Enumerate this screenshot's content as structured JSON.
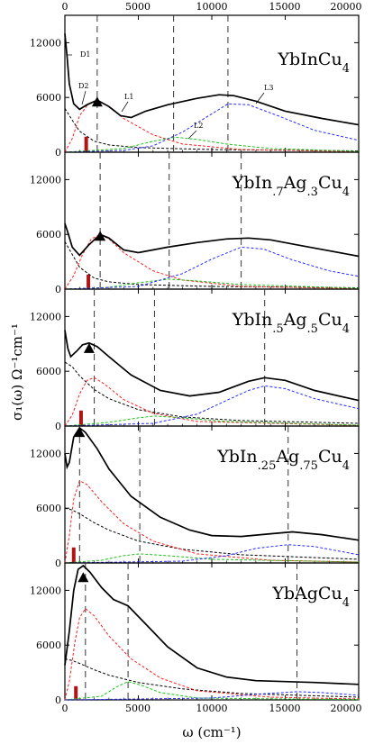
{
  "figure": {
    "top_ticks": [
      "0",
      "5000",
      "10000",
      "15000",
      "20000"
    ],
    "bottom_ticks": [
      "0",
      "5000",
      "10000",
      "15000",
      "20000"
    ],
    "xlabel": "ω (cm⁻¹)",
    "ylabel": "σ₁(ω) Ω⁻¹cm⁻¹"
  },
  "colors": {
    "total": "#000000",
    "drude": "#000000",
    "lorentz1": "#ff2020",
    "lorentz2": "#19c219",
    "lorentz3": "#2a2aff",
    "gap_bar": "#b01515",
    "dashed_vline": "#333333"
  },
  "chart_data": [
    {
      "type": "line",
      "title": "YbInCu4",
      "title_parts": [
        "YbInCu",
        "4"
      ],
      "xlim": [
        0,
        20000
      ],
      "ylim": [
        0,
        15000
      ],
      "yticks": [
        "12000",
        "6000",
        "0"
      ],
      "labels": [
        "D1",
        "D2",
        "L1",
        "L2",
        "L3"
      ],
      "vlines": [
        2200,
        7400,
        11100
      ],
      "bar": {
        "x": 1450,
        "height": 1700
      },
      "peak_marker": {
        "x": 2200,
        "y": 5500
      },
      "drude": [
        [
          0,
          4800
        ],
        [
          500,
          3500
        ],
        [
          1000,
          2300
        ],
        [
          2000,
          1200
        ],
        [
          3000,
          800
        ],
        [
          5000,
          500
        ],
        [
          10000,
          300
        ],
        [
          20000,
          150
        ]
      ],
      "lorentz1": [
        [
          0,
          0
        ],
        [
          500,
          1500
        ],
        [
          1000,
          4000
        ],
        [
          1600,
          5300
        ],
        [
          2200,
          5600
        ],
        [
          2800,
          5200
        ],
        [
          4000,
          3700
        ],
        [
          6000,
          1900
        ],
        [
          8000,
          900
        ],
        [
          12000,
          300
        ],
        [
          20000,
          60
        ]
      ],
      "lorentz2": [
        [
          0,
          0
        ],
        [
          4000,
          400
        ],
        [
          6000,
          1200
        ],
        [
          7500,
          1650
        ],
        [
          9000,
          1400
        ],
        [
          11000,
          900
        ],
        [
          14000,
          400
        ],
        [
          20000,
          100
        ]
      ],
      "lorentz3": [
        [
          0,
          0
        ],
        [
          4000,
          200
        ],
        [
          6000,
          700
        ],
        [
          8000,
          2200
        ],
        [
          10000,
          4200
        ],
        [
          11100,
          5300
        ],
        [
          12500,
          5200
        ],
        [
          14500,
          4000
        ],
        [
          17000,
          2400
        ],
        [
          20000,
          1300
        ]
      ],
      "total": [
        [
          0,
          13000
        ],
        [
          150,
          10500
        ],
        [
          300,
          7500
        ],
        [
          600,
          5300
        ],
        [
          1000,
          4700
        ],
        [
          1500,
          5200
        ],
        [
          2200,
          5700
        ],
        [
          3000,
          5000
        ],
        [
          3800,
          4000
        ],
        [
          4500,
          3800
        ],
        [
          5500,
          4500
        ],
        [
          7000,
          5200
        ],
        [
          9000,
          5900
        ],
        [
          10500,
          6300
        ],
        [
          11500,
          6200
        ],
        [
          13000,
          5600
        ],
        [
          15000,
          4500
        ],
        [
          17500,
          3700
        ],
        [
          20000,
          3000
        ]
      ]
    },
    {
      "type": "line",
      "title": "YbIn.7Ag.3Cu4",
      "title_parts": [
        "YbIn",
        ".7",
        "Ag",
        ".3",
        "Cu",
        "4"
      ],
      "xlim": [
        0,
        20000
      ],
      "ylim": [
        0,
        15000
      ],
      "yticks": [
        "12000",
        "6000",
        "0"
      ],
      "labels": [],
      "vlines": [
        2400,
        7100,
        12000
      ],
      "bar": {
        "x": 1600,
        "height": 1600
      },
      "peak_marker": {
        "x": 2400,
        "y": 5800
      },
      "drude": [
        [
          0,
          5200
        ],
        [
          500,
          3800
        ],
        [
          1000,
          2400
        ],
        [
          2000,
          1200
        ],
        [
          3000,
          800
        ],
        [
          5000,
          500
        ],
        [
          10000,
          300
        ],
        [
          20000,
          150
        ]
      ],
      "lorentz1": [
        [
          0,
          0
        ],
        [
          600,
          1500
        ],
        [
          1200,
          3800
        ],
        [
          1800,
          5500
        ],
        [
          2400,
          6000
        ],
        [
          3000,
          5500
        ],
        [
          4000,
          4000
        ],
        [
          6000,
          2000
        ],
        [
          8000,
          1000
        ],
        [
          12000,
          300
        ],
        [
          20000,
          60
        ]
      ],
      "lorentz2": [
        [
          0,
          0
        ],
        [
          3000,
          200
        ],
        [
          5000,
          700
        ],
        [
          7100,
          1100
        ],
        [
          9000,
          900
        ],
        [
          12000,
          500
        ],
        [
          20000,
          100
        ]
      ],
      "lorentz3": [
        [
          0,
          0
        ],
        [
          5000,
          300
        ],
        [
          8000,
          1700
        ],
        [
          10000,
          3300
        ],
        [
          12000,
          4600
        ],
        [
          13500,
          4400
        ],
        [
          15500,
          3200
        ],
        [
          18000,
          2000
        ],
        [
          20000,
          1400
        ]
      ],
      "total": [
        [
          0,
          7200
        ],
        [
          200,
          6200
        ],
        [
          500,
          4600
        ],
        [
          1000,
          3700
        ],
        [
          1600,
          4800
        ],
        [
          2400,
          6000
        ],
        [
          3000,
          5600
        ],
        [
          4000,
          4300
        ],
        [
          5000,
          4000
        ],
        [
          7000,
          4600
        ],
        [
          9000,
          5100
        ],
        [
          11000,
          5500
        ],
        [
          12500,
          5600
        ],
        [
          14000,
          5400
        ],
        [
          16000,
          4800
        ],
        [
          18000,
          4200
        ],
        [
          20000,
          3600
        ]
      ]
    },
    {
      "type": "line",
      "title": "YbIn.5Ag.5Cu4",
      "title_parts": [
        "YbIn",
        ".5",
        "Ag",
        ".5",
        "Cu",
        "4"
      ],
      "xlim": [
        0,
        20000
      ],
      "ylim": [
        0,
        15000
      ],
      "yticks": [
        "12000",
        "6000",
        "0"
      ],
      "labels": [],
      "vlines": [
        2000,
        6100,
        13600
      ],
      "bar": {
        "x": 1100,
        "height": 1700
      },
      "peak_marker": {
        "x": 1650,
        "y": 8500
      },
      "drude": [
        [
          0,
          7000
        ],
        [
          500,
          6500
        ],
        [
          1000,
          5500
        ],
        [
          2000,
          4000
        ],
        [
          3000,
          3000
        ],
        [
          5000,
          1800
        ],
        [
          8000,
          1000
        ],
        [
          12000,
          600
        ],
        [
          20000,
          300
        ]
      ],
      "lorentz1": [
        [
          0,
          0
        ],
        [
          500,
          1200
        ],
        [
          1000,
          3500
        ],
        [
          1500,
          5000
        ],
        [
          2000,
          5300
        ],
        [
          2700,
          4600
        ],
        [
          4000,
          2900
        ],
        [
          6000,
          1400
        ],
        [
          9000,
          500
        ],
        [
          20000,
          80
        ]
      ],
      "lorentz2": [
        [
          0,
          0
        ],
        [
          3000,
          400
        ],
        [
          5000,
          900
        ],
        [
          6100,
          1100
        ],
        [
          8000,
          900
        ],
        [
          11000,
          500
        ],
        [
          20000,
          100
        ]
      ],
      "lorentz3": [
        [
          0,
          0
        ],
        [
          6000,
          300
        ],
        [
          9000,
          1300
        ],
        [
          11000,
          2800
        ],
        [
          12500,
          3900
        ],
        [
          13600,
          4400
        ],
        [
          15000,
          4100
        ],
        [
          17000,
          3000
        ],
        [
          20000,
          1900
        ]
      ],
      "total": [
        [
          0,
          10500
        ],
        [
          200,
          8500
        ],
        [
          400,
          7600
        ],
        [
          800,
          8200
        ],
        [
          1200,
          8900
        ],
        [
          1650,
          9100
        ],
        [
          2200,
          8700
        ],
        [
          3000,
          7600
        ],
        [
          4500,
          5600
        ],
        [
          6500,
          3900
        ],
        [
          8500,
          3300
        ],
        [
          10500,
          3700
        ],
        [
          12500,
          4900
        ],
        [
          13600,
          5300
        ],
        [
          15000,
          5000
        ],
        [
          17000,
          3900
        ],
        [
          20000,
          2800
        ]
      ]
    },
    {
      "type": "line",
      "title": "YbIn.25Ag.75Cu4",
      "title_parts": [
        "YbIn",
        ".25",
        "Ag",
        ".75",
        "Cu",
        "4"
      ],
      "xlim": [
        0,
        20000
      ],
      "ylim": [
        0,
        15000
      ],
      "yticks": [
        "12000",
        "6000",
        "0"
      ],
      "labels": [],
      "vlines": [
        1000,
        5100,
        15200
      ],
      "bar": {
        "x": 600,
        "height": 1700
      },
      "peak_marker": {
        "x": 1000,
        "y": 14300
      },
      "drude": [
        [
          0,
          6000
        ],
        [
          500,
          5800
        ],
        [
          1000,
          5400
        ],
        [
          2000,
          4400
        ],
        [
          3000,
          3600
        ],
        [
          5000,
          2400
        ],
        [
          8000,
          1500
        ],
        [
          12000,
          900
        ],
        [
          20000,
          400
        ]
      ],
      "lorentz1": [
        [
          0,
          0
        ],
        [
          300,
          3000
        ],
        [
          600,
          7000
        ],
        [
          1000,
          9000
        ],
        [
          1500,
          8600
        ],
        [
          2500,
          6700
        ],
        [
          4000,
          4300
        ],
        [
          6000,
          2400
        ],
        [
          9000,
          1000
        ],
        [
          14000,
          300
        ],
        [
          20000,
          100
        ]
      ],
      "lorentz2": [
        [
          0,
          0
        ],
        [
          2500,
          300
        ],
        [
          4000,
          800
        ],
        [
          5100,
          1000
        ],
        [
          7000,
          800
        ],
        [
          10000,
          400
        ],
        [
          20000,
          100
        ]
      ],
      "lorentz3": [
        [
          0,
          0
        ],
        [
          8000,
          200
        ],
        [
          11000,
          800
        ],
        [
          13000,
          1600
        ],
        [
          15200,
          2000
        ],
        [
          17000,
          1800
        ],
        [
          20000,
          900
        ]
      ],
      "total": [
        [
          0,
          12000
        ],
        [
          150,
          10500
        ],
        [
          300,
          11000
        ],
        [
          600,
          13800
        ],
        [
          1000,
          14800
        ],
        [
          1400,
          14300
        ],
        [
          2200,
          12500
        ],
        [
          3000,
          10300
        ],
        [
          4500,
          7300
        ],
        [
          6500,
          5000
        ],
        [
          8500,
          3600
        ],
        [
          10000,
          3000
        ],
        [
          12000,
          2900
        ],
        [
          14000,
          3200
        ],
        [
          15500,
          3400
        ],
        [
          17500,
          3100
        ],
        [
          20000,
          2500
        ]
      ]
    },
    {
      "type": "line",
      "title": "YbAgCu4",
      "title_parts": [
        "YbAgCu",
        "4"
      ],
      "xlim": [
        0,
        20000
      ],
      "ylim": [
        0,
        15000
      ],
      "yticks": [
        "12000",
        "6000",
        "0"
      ],
      "labels": [],
      "vlines": [
        1400,
        4300,
        15800
      ],
      "bar": {
        "x": 750,
        "height": 1500
      },
      "peak_marker": {
        "x": 1250,
        "y": 13400
      },
      "drude": [
        [
          0,
          4500
        ],
        [
          500,
          4300
        ],
        [
          1000,
          4000
        ],
        [
          2000,
          3300
        ],
        [
          3000,
          2700
        ],
        [
          5000,
          1900
        ],
        [
          8000,
          1200
        ],
        [
          12000,
          700
        ],
        [
          20000,
          300
        ]
      ],
      "lorentz1": [
        [
          0,
          0
        ],
        [
          300,
          2000
        ],
        [
          700,
          6500
        ],
        [
          1000,
          9000
        ],
        [
          1400,
          10000
        ],
        [
          2000,
          9200
        ],
        [
          3000,
          7000
        ],
        [
          4500,
          4500
        ],
        [
          6500,
          2400
        ],
        [
          9000,
          1000
        ],
        [
          14000,
          300
        ],
        [
          20000,
          100
        ]
      ],
      "lorentz2": [
        [
          0,
          0
        ],
        [
          2500,
          400
        ],
        [
          3500,
          1400
        ],
        [
          4300,
          2000
        ],
        [
          5200,
          1600
        ],
        [
          6500,
          800
        ],
        [
          9000,
          200
        ],
        [
          20000,
          30
        ]
      ],
      "lorentz3": [
        [
          0,
          0
        ],
        [
          10000,
          200
        ],
        [
          13000,
          600
        ],
        [
          15800,
          900
        ],
        [
          17500,
          800
        ],
        [
          20000,
          500
        ]
      ],
      "total": [
        [
          0,
          3800
        ],
        [
          300,
          7500
        ],
        [
          600,
          12000
        ],
        [
          900,
          14300
        ],
        [
          1250,
          14700
        ],
        [
          1700,
          14000
        ],
        [
          2500,
          12300
        ],
        [
          3300,
          11000
        ],
        [
          4300,
          10300
        ],
        [
          5500,
          8300
        ],
        [
          7000,
          5800
        ],
        [
          9000,
          3500
        ],
        [
          11000,
          2500
        ],
        [
          13000,
          2100
        ],
        [
          15000,
          2000
        ],
        [
          17000,
          1900
        ],
        [
          20000,
          1700
        ]
      ]
    }
  ]
}
